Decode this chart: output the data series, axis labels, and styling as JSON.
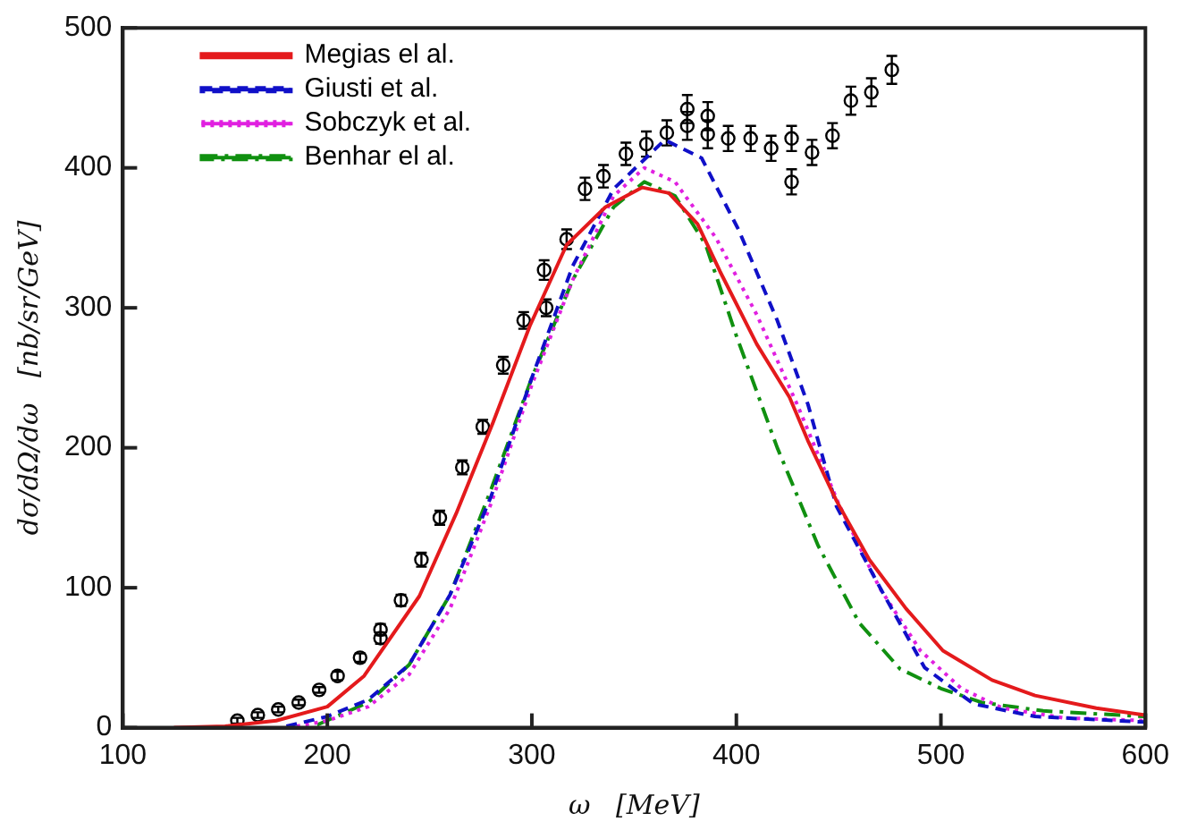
{
  "chart_data": {
    "type": "line",
    "xlabel": "ω   [MeV]",
    "ylabel": "dσ/dΩ/dω   [nb/sr/GeV]",
    "xlim": [
      100,
      600
    ],
    "xticks": [
      100,
      200,
      300,
      400,
      500,
      600
    ],
    "ylim": [
      0,
      500
    ],
    "yticks": [
      0,
      100,
      200,
      300,
      400,
      500
    ],
    "grid": false,
    "legend": "top left",
    "series": [
      {
        "name": "Megias el al.",
        "color": "#e41a1c",
        "line_style": "solid",
        "marker": "none",
        "x": [
          125,
          150,
          175,
          200,
          218,
          245,
          263,
          281,
          299,
          317,
          336,
          354,
          367,
          381,
          392,
          410,
          426,
          435,
          449,
          465,
          483,
          501,
          525,
          546,
          576,
          600
        ],
        "values": [
          0,
          1,
          5,
          15,
          37,
          94,
          153,
          218,
          287,
          345,
          372,
          386,
          382,
          360,
          326,
          274,
          236,
          205,
          162,
          120,
          85,
          55,
          34,
          23,
          14,
          9
        ]
      },
      {
        "name": "Giusti et al.",
        "color": "#1010c8",
        "line_style": "dashed",
        "marker": "none",
        "x": [
          180,
          200,
          220,
          240,
          260,
          280,
          300,
          320,
          340,
          365,
          383,
          401,
          420,
          435,
          449,
          471,
          492,
          516,
          546,
          600
        ],
        "values": [
          1,
          8,
          20,
          45,
          95,
          165,
          250,
          330,
          385,
          420,
          407,
          356,
          291,
          231,
          158,
          98,
          43,
          17,
          8,
          4
        ]
      },
      {
        "name": "Sobczyk et al.",
        "color": "#e020e0",
        "line_style": "dotted",
        "marker": "none",
        "x": [
          185,
          200,
          220,
          240,
          260,
          280,
          300,
          320,
          340,
          355,
          370,
          390,
          410,
          430,
          450,
          470,
          490,
          510,
          530,
          560,
          600
        ],
        "values": [
          1,
          5,
          15,
          38,
          85,
          160,
          245,
          320,
          380,
          400,
          390,
          350,
          295,
          230,
          160,
          100,
          55,
          28,
          14,
          7,
          5
        ]
      },
      {
        "name": "Benhar el al.",
        "color": "#109010",
        "line_style": "dashdot",
        "marker": "none",
        "x": [
          195,
          220,
          240,
          260,
          280,
          300,
          320,
          340,
          355,
          370,
          385,
          400,
          420,
          440,
          460,
          480,
          500,
          520,
          550,
          600
        ],
        "values": [
          2,
          18,
          45,
          95,
          170,
          250,
          320,
          372,
          390,
          380,
          345,
          280,
          200,
          130,
          75,
          42,
          28,
          18,
          12,
          8
        ]
      },
      {
        "type": "scatter",
        "color": "#000000",
        "marker": "circle",
        "x": [
          156,
          166,
          176,
          186,
          196,
          205,
          216,
          226,
          226,
          236,
          246,
          255,
          266,
          276,
          286,
          296,
          307,
          306,
          317,
          326,
          335,
          346,
          356,
          366,
          376,
          376,
          386,
          386,
          396,
          407,
          417,
          427,
          427,
          437,
          447,
          456,
          466,
          476
        ],
        "values": [
          5,
          9,
          13,
          18,
          27,
          37,
          50,
          64,
          70,
          91,
          120,
          150,
          186,
          215,
          259,
          291,
          300,
          327,
          349,
          385,
          394,
          410,
          417,
          425,
          442,
          430,
          437,
          424,
          421,
          421,
          414,
          421,
          390,
          411,
          423,
          448,
          454,
          470
        ],
        "errors": [
          2,
          2,
          2,
          2,
          2,
          3,
          3,
          4,
          4,
          4,
          5,
          5,
          5,
          5,
          6,
          6,
          6,
          7,
          7,
          8,
          8,
          8,
          9,
          9,
          10,
          10,
          10,
          10,
          9,
          9,
          9,
          9,
          9,
          9,
          9,
          10,
          10,
          10
        ]
      }
    ]
  }
}
